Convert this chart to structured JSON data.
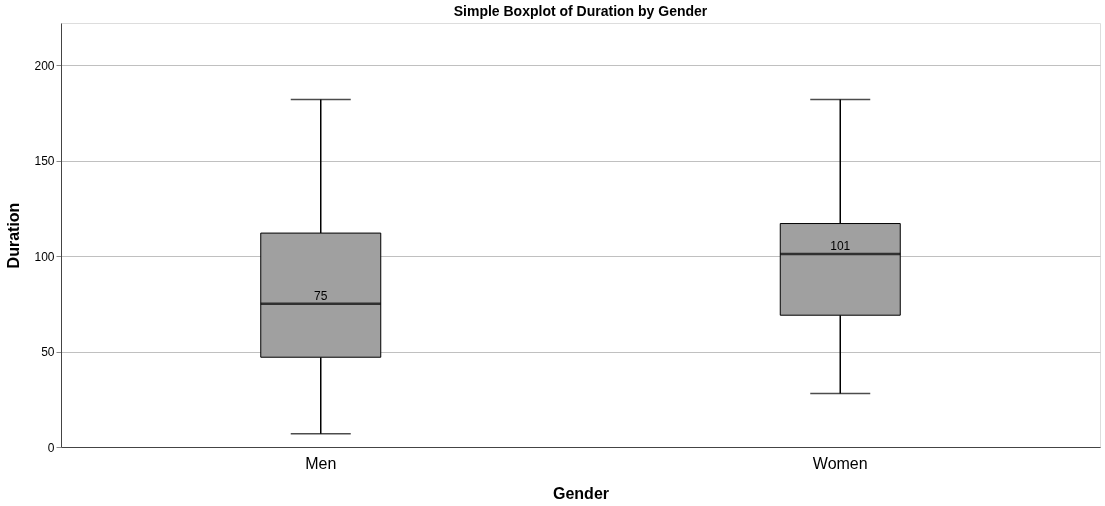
{
  "chart_data": {
    "type": "box",
    "title": "Simple Boxplot of Duration by Gender",
    "xlabel": "Gender",
    "ylabel": "Duration",
    "categories": [
      "Men",
      "Women"
    ],
    "boxes": [
      {
        "low": 7,
        "q1": 47,
        "median": 75,
        "q3": 112,
        "high": 182
      },
      {
        "low": 28,
        "q1": 69,
        "median": 101,
        "q3": 117,
        "high": 182
      }
    ],
    "color": "#a0a0a0",
    "ylim": [
      0,
      222
    ],
    "yticks": [
      0,
      50,
      100,
      150,
      200
    ],
    "grid": "y",
    "value_labels": [
      "75",
      "101"
    ]
  }
}
